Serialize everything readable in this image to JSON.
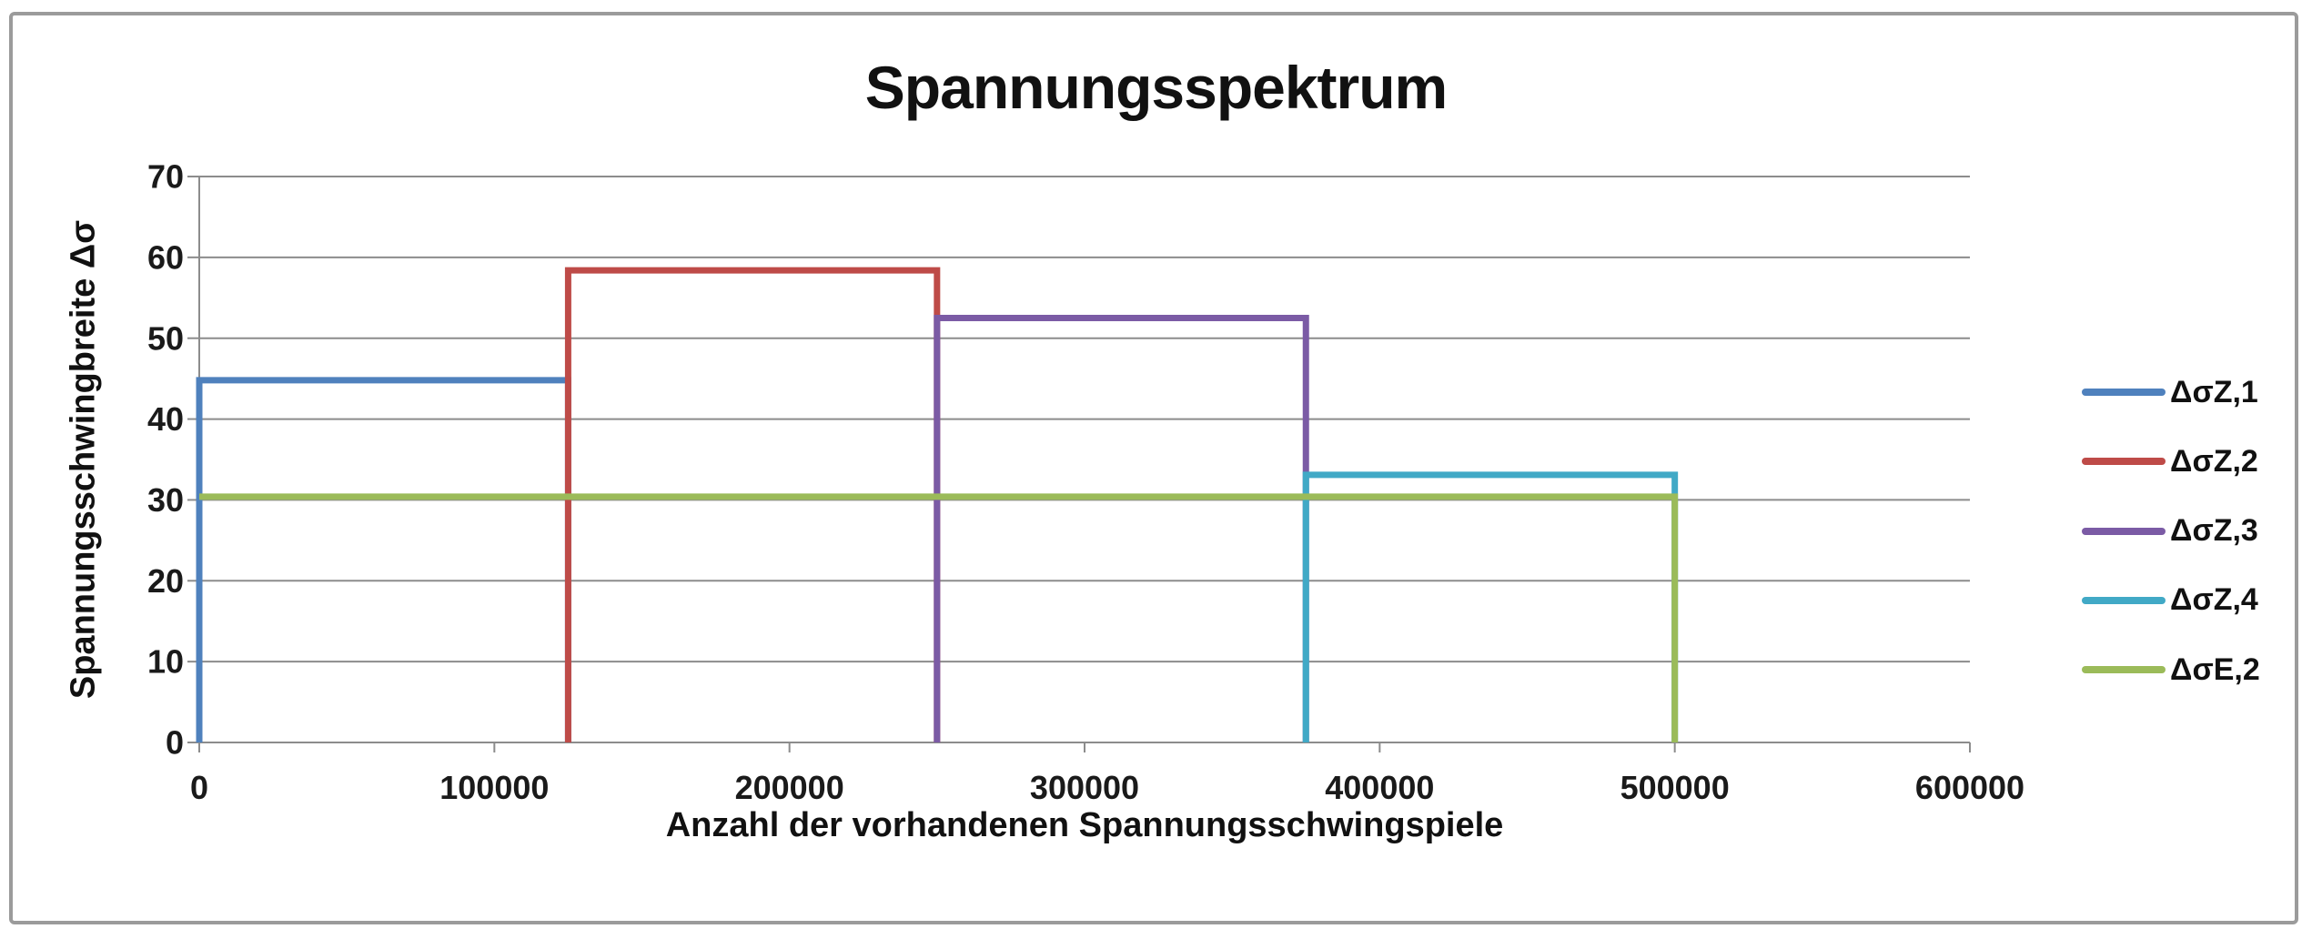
{
  "title": "Spannungsspektrum",
  "chart_data": {
    "type": "line",
    "subtype": "step-spectrum",
    "title": "Spannungsspektrum",
    "xlabel": "Anzahl der vorhandenen Spannungsschwingspiele",
    "ylabel": "Spannungsschwingbreite Δσ",
    "xlim": [
      0,
      600000
    ],
    "ylim": [
      0,
      70
    ],
    "x_ticks": [
      0,
      100000,
      200000,
      300000,
      400000,
      500000,
      600000
    ],
    "x_tick_labels": [
      "0",
      "100000",
      "200000",
      "300000",
      "400000",
      "500000",
      "600000"
    ],
    "y_ticks": [
      0,
      10,
      20,
      30,
      40,
      50,
      60,
      70
    ],
    "y_tick_labels": [
      "0",
      "10",
      "20",
      "30",
      "40",
      "50",
      "60",
      "70"
    ],
    "grid": "horizontal",
    "legend_position": "right",
    "series": [
      {
        "name": "ΔσZ,1",
        "color": "#4F81BD",
        "points": [
          [
            0,
            0
          ],
          [
            0,
            44.8
          ],
          [
            125000,
            44.8
          ],
          [
            125000,
            0
          ]
        ]
      },
      {
        "name": "ΔσZ,2",
        "color": "#BE4B48",
        "points": [
          [
            125000,
            0
          ],
          [
            125000,
            58.4
          ],
          [
            250000,
            58.4
          ],
          [
            250000,
            0
          ]
        ]
      },
      {
        "name": "ΔσZ,3",
        "color": "#7B5BA5",
        "points": [
          [
            250000,
            0
          ],
          [
            250000,
            52.5
          ],
          [
            375000,
            52.5
          ],
          [
            375000,
            0
          ]
        ]
      },
      {
        "name": "ΔσZ,4",
        "color": "#41A9C6",
        "points": [
          [
            375000,
            0
          ],
          [
            375000,
            33.1
          ],
          [
            500000,
            33.1
          ],
          [
            500000,
            0
          ]
        ]
      },
      {
        "name": "ΔσE,2",
        "color": "#9BBB59",
        "points": [
          [
            0,
            30.4
          ],
          [
            500000,
            30.4
          ],
          [
            500000,
            0
          ]
        ]
      }
    ]
  },
  "style": {
    "background": "#ffffff",
    "border_color": "#9b9b9b",
    "grid_color": "#8c8c8c",
    "axis_color": "#8c8c8c",
    "text_color": "#1a1a1a",
    "series_line_width": 7
  }
}
